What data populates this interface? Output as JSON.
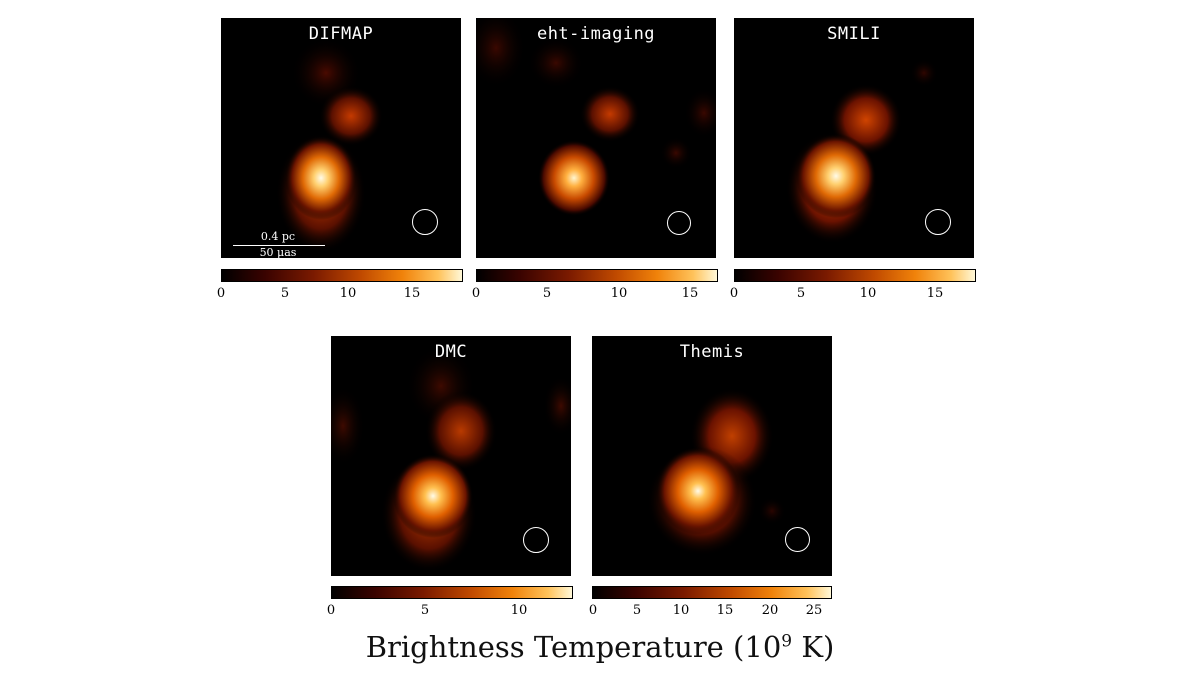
{
  "panels": [
    {
      "title": "DIFMAP",
      "ticks": [
        "0",
        "5",
        "10",
        "15"
      ],
      "cbar_max": 19
    },
    {
      "title": "eht-imaging",
      "ticks": [
        "0",
        "5",
        "10",
        "15"
      ],
      "cbar_max": 17
    },
    {
      "title": "SMILI",
      "ticks": [
        "0",
        "5",
        "10",
        "15"
      ],
      "cbar_max": 18
    },
    {
      "title": "DMC",
      "ticks": [
        "0",
        "5",
        "10"
      ],
      "cbar_max": 13
    },
    {
      "title": "Themis",
      "ticks": [
        "0",
        "5",
        "10",
        "15",
        "20",
        "25"
      ],
      "cbar_max": 27
    }
  ],
  "scale_bar": {
    "top_label": "0.4 pc",
    "bottom_label": "50 μas"
  },
  "xlabel": {
    "main": "Brightness Temperature (10",
    "exp": "9",
    "unit": " K)"
  },
  "colormap": [
    "#000000",
    "#7a1a00",
    "#f0820a",
    "#fff8d8"
  ]
}
